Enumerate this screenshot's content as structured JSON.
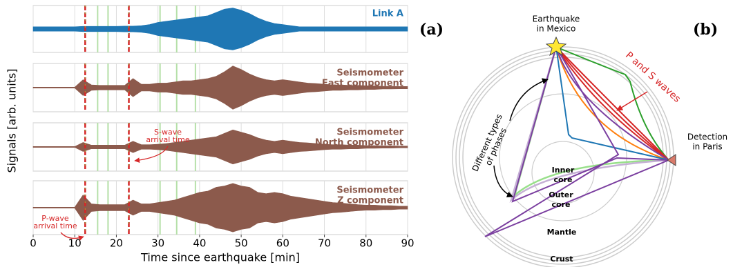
{
  "chart_data": {
    "type": "area",
    "xlabel": "Time since earthquake [min]",
    "ylabel": "Signals [arb. units]",
    "xlim": [
      0,
      90
    ],
    "xticks": [
      0,
      10,
      20,
      30,
      40,
      50,
      60,
      70,
      80,
      90
    ],
    "ylim": [
      -1,
      1
    ],
    "grid": true,
    "x": [
      0,
      2,
      4,
      6,
      8,
      10,
      12,
      14,
      16,
      18,
      20,
      22,
      24,
      26,
      28,
      30,
      32,
      34,
      36,
      38,
      40,
      42,
      44,
      46,
      48,
      50,
      52,
      54,
      56,
      58,
      60,
      62,
      64,
      66,
      68,
      70,
      72,
      74,
      76,
      78,
      80,
      82,
      84,
      86,
      88,
      90
    ],
    "series": [
      {
        "name": [
          "Link A"
        ],
        "color": "#1f77b4",
        "values": [
          0.1,
          0.1,
          0.1,
          0.1,
          0.1,
          0.1,
          0.12,
          0.12,
          0.12,
          0.12,
          0.12,
          0.13,
          0.13,
          0.15,
          0.2,
          0.3,
          0.35,
          0.4,
          0.45,
          0.5,
          0.55,
          0.6,
          0.75,
          0.9,
          0.95,
          0.85,
          0.7,
          0.5,
          0.35,
          0.25,
          0.2,
          0.15,
          0.1,
          0.1,
          0.1,
          0.1,
          0.1,
          0.1,
          0.1,
          0.1,
          0.1,
          0.1,
          0.1,
          0.1,
          0.1,
          0.1
        ]
      },
      {
        "name": [
          "Seismometer",
          "East component"
        ],
        "color": "#8c5a4c",
        "values": [
          0.02,
          0.02,
          0.02,
          0.02,
          0.02,
          0.02,
          0.35,
          0.12,
          0.1,
          0.1,
          0.1,
          0.1,
          0.4,
          0.15,
          0.15,
          0.2,
          0.2,
          0.25,
          0.3,
          0.3,
          0.35,
          0.4,
          0.5,
          0.7,
          0.95,
          0.8,
          0.6,
          0.45,
          0.35,
          0.3,
          0.35,
          0.3,
          0.25,
          0.2,
          0.18,
          0.15,
          0.12,
          0.12,
          0.1,
          0.1,
          0.08,
          0.08,
          0.06,
          0.06,
          0.05,
          0.05
        ]
      },
      {
        "name": [
          "Seismometer",
          "North component"
        ],
        "color": "#8c5a4c",
        "values": [
          0.02,
          0.02,
          0.02,
          0.02,
          0.02,
          0.02,
          0.2,
          0.08,
          0.08,
          0.08,
          0.08,
          0.08,
          0.25,
          0.1,
          0.1,
          0.12,
          0.15,
          0.2,
          0.25,
          0.3,
          0.35,
          0.4,
          0.45,
          0.6,
          0.75,
          0.65,
          0.55,
          0.4,
          0.3,
          0.25,
          0.3,
          0.25,
          0.2,
          0.18,
          0.15,
          0.12,
          0.1,
          0.1,
          0.08,
          0.08,
          0.06,
          0.06,
          0.05,
          0.05,
          0.04,
          0.04
        ]
      },
      {
        "name": [
          "Seismometer",
          "Z component"
        ],
        "color": "#8c5a4c",
        "values": [
          0.02,
          0.02,
          0.02,
          0.02,
          0.02,
          0.02,
          0.5,
          0.15,
          0.12,
          0.12,
          0.12,
          0.12,
          0.3,
          0.15,
          0.15,
          0.2,
          0.25,
          0.3,
          0.4,
          0.5,
          0.6,
          0.65,
          0.8,
          0.85,
          0.95,
          0.85,
          0.8,
          0.6,
          0.55,
          0.6,
          0.55,
          0.45,
          0.4,
          0.35,
          0.3,
          0.25,
          0.2,
          0.18,
          0.15,
          0.12,
          0.1,
          0.1,
          0.08,
          0.08,
          0.06,
          0.06
        ]
      }
    ],
    "p_arrival": 12.5,
    "s_arrival": 23,
    "phase_lines": [
      15.5,
      18,
      30.5,
      34.5,
      39
    ],
    "annotations": [
      [
        "S-wave",
        "arrival time"
      ],
      [
        "P-wave",
        "arrival time"
      ]
    ]
  },
  "panel_labels": [
    "(a)",
    "(b)"
  ],
  "diagram": {
    "source": [
      "Earthquake",
      "in Mexico"
    ],
    "detector": [
      "Detection",
      "in Paris"
    ],
    "waves": "P and S waves",
    "phases": [
      "Different types",
      "of phases"
    ],
    "inner_core": [
      "Inner",
      "core"
    ],
    "outer_core": [
      "Outer",
      "core"
    ],
    "mantle": "Mantle",
    "crust": "Crust"
  }
}
